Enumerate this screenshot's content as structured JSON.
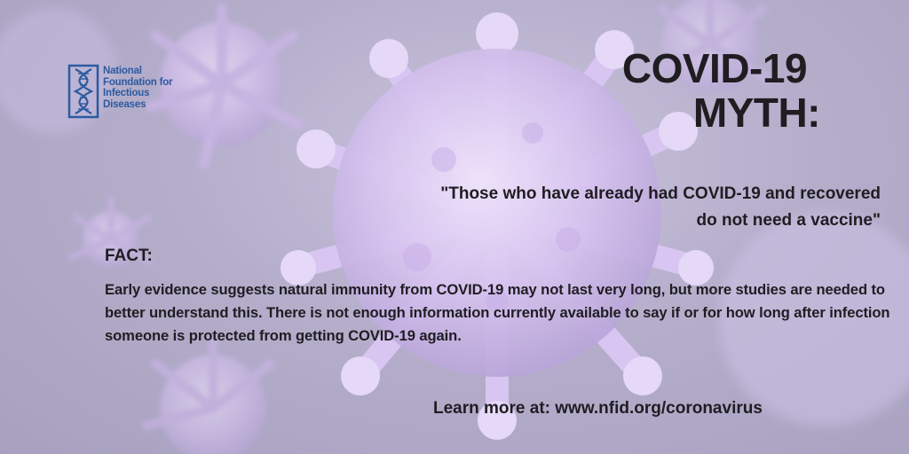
{
  "logo": {
    "lines": [
      "National",
      "Foundation for",
      "Infectious",
      "Diseases"
    ]
  },
  "headline": {
    "line1": "COVID-19",
    "line2": "MYTH:"
  },
  "myth": {
    "quote": "\"Those who have already had COVID-19 and recovered do not need a vaccine\""
  },
  "fact": {
    "label": "FACT:",
    "body": "Early evidence suggests natural immunity from COVID-19 may not last very long, but more studies are needed to better understand this. There is not enough information currently available to say if or for how long after infection someone is protected from getting COVID-19 again."
  },
  "footer": {
    "learn_more": "Learn more at: www.nfid.org/coronavirus"
  },
  "colors": {
    "text": "#1f1d22",
    "logo_blue": "#2c5aa0",
    "virus": "#d7c5f0"
  }
}
